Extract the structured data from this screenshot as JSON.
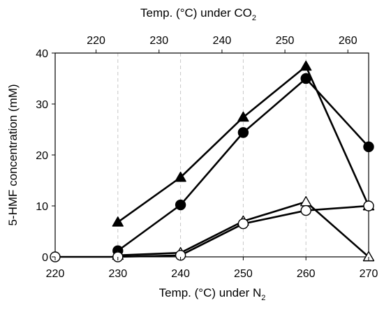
{
  "chart_data": {
    "type": "line",
    "x_bottom": {
      "label_prefix": "Temp. (",
      "label_unit": "°C",
      "label_suffix": ") under N",
      "label_sub": "2",
      "ticks": [
        220,
        230,
        240,
        250,
        260,
        270
      ],
      "range": [
        220,
        270
      ]
    },
    "x_top": {
      "label_prefix": "Temp. (",
      "label_unit": "°C",
      "label_suffix": ") under CO",
      "label_sub": "2",
      "ticks": [
        220,
        230,
        240,
        250,
        260
      ],
      "range": [
        213.5,
        263.3
      ]
    },
    "y": {
      "label": "5-HMF concentration (mM)",
      "ticks": [
        0,
        10,
        20,
        30,
        40
      ],
      "range": [
        0,
        40
      ]
    },
    "grid": "dashed vertical lines at 230, 240, 250, 260 (bottom axis)",
    "series": [
      {
        "marker": "filled-triangle",
        "x": [
          230,
          240,
          250,
          260,
          270
        ],
        "y": [
          6.8,
          15.6,
          27.4,
          37.4,
          10.0
        ]
      },
      {
        "marker": "filled-circle",
        "x": [
          230,
          240,
          250,
          260,
          270
        ],
        "y": [
          1.2,
          10.2,
          24.4,
          35.0,
          21.6
        ]
      },
      {
        "marker": "open-triangle",
        "x": [
          230,
          240,
          250,
          260,
          270
        ],
        "y": [
          0.3,
          0.8,
          7.0,
          10.8,
          0.0
        ]
      },
      {
        "marker": "open-circle",
        "x": [
          220,
          230,
          240,
          250,
          260,
          270
        ],
        "y": [
          0.0,
          0.0,
          0.3,
          6.5,
          9.1,
          10.0
        ]
      }
    ]
  }
}
